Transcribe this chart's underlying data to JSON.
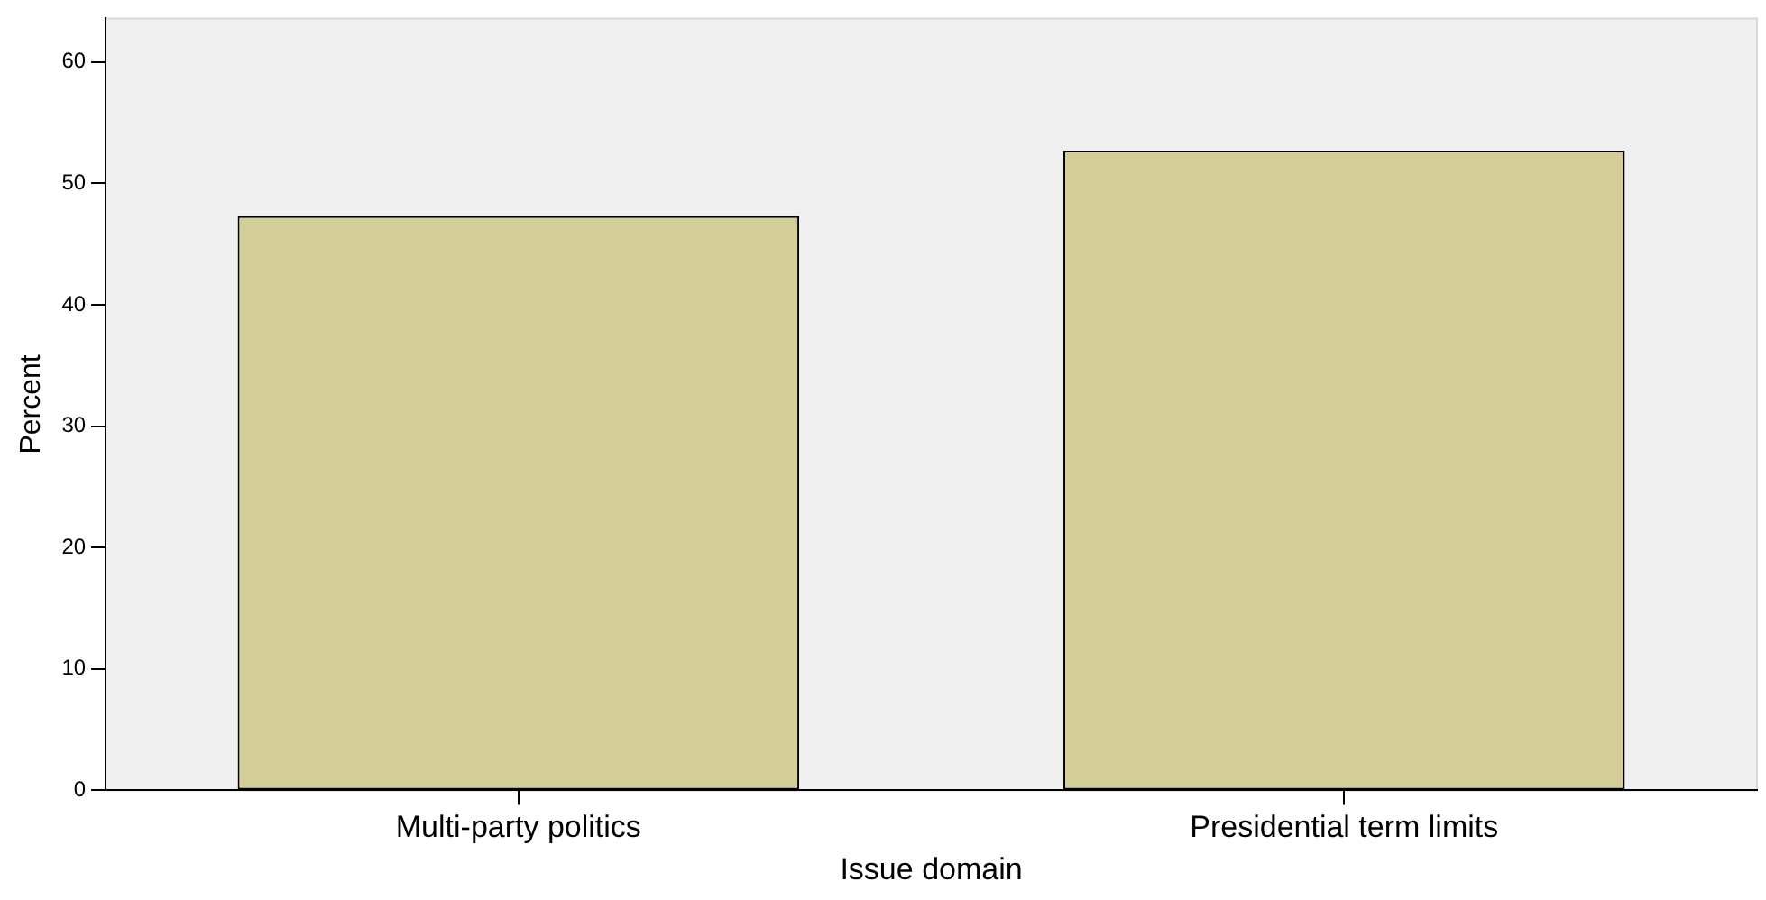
{
  "chart_data": {
    "type": "bar",
    "categories": [
      "Multi-party politics",
      "Presidential term limits"
    ],
    "values": [
      47.3,
      52.7
    ],
    "color": "#d3ce98",
    "xlabel": "Issue domain",
    "ylabel": "Percent",
    "ylim": [
      0,
      63.6
    ],
    "yticks": [
      0,
      10,
      20,
      30,
      40,
      50,
      60
    ],
    "grid": false,
    "legend": false
  }
}
